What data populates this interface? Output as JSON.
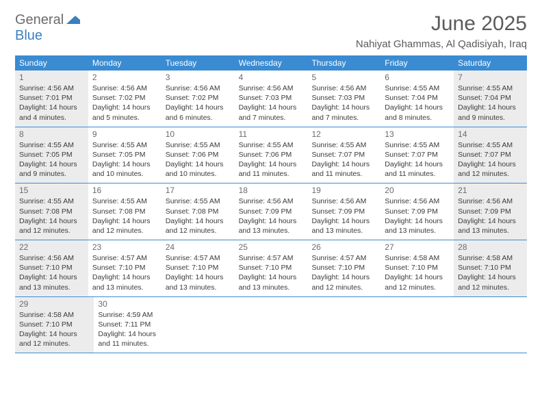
{
  "brand": {
    "part1": "General",
    "part2": "Blue"
  },
  "title": "June 2025",
  "location": "Nahiyat Ghammas, Al Qadisiyah, Iraq",
  "colors": {
    "header_bg": "#3a8bd1",
    "header_text": "#ffffff",
    "shade_bg": "#ececec",
    "text_muted": "#6b6b6b",
    "text_body": "#3a3a3a",
    "brand_gray": "#6b6b6b",
    "brand_blue": "#3a7fbf",
    "border": "#3a8bd1"
  },
  "weekdays": [
    "Sunday",
    "Monday",
    "Tuesday",
    "Wednesday",
    "Thursday",
    "Friday",
    "Saturday"
  ],
  "weeks": [
    [
      {
        "n": "1",
        "shaded": true,
        "sr": "Sunrise: 4:56 AM",
        "ss": "Sunset: 7:01 PM",
        "dl1": "Daylight: 14 hours",
        "dl2": "and 4 minutes."
      },
      {
        "n": "2",
        "shaded": false,
        "sr": "Sunrise: 4:56 AM",
        "ss": "Sunset: 7:02 PM",
        "dl1": "Daylight: 14 hours",
        "dl2": "and 5 minutes."
      },
      {
        "n": "3",
        "shaded": false,
        "sr": "Sunrise: 4:56 AM",
        "ss": "Sunset: 7:02 PM",
        "dl1": "Daylight: 14 hours",
        "dl2": "and 6 minutes."
      },
      {
        "n": "4",
        "shaded": false,
        "sr": "Sunrise: 4:56 AM",
        "ss": "Sunset: 7:03 PM",
        "dl1": "Daylight: 14 hours",
        "dl2": "and 7 minutes."
      },
      {
        "n": "5",
        "shaded": false,
        "sr": "Sunrise: 4:56 AM",
        "ss": "Sunset: 7:03 PM",
        "dl1": "Daylight: 14 hours",
        "dl2": "and 7 minutes."
      },
      {
        "n": "6",
        "shaded": false,
        "sr": "Sunrise: 4:55 AM",
        "ss": "Sunset: 7:04 PM",
        "dl1": "Daylight: 14 hours",
        "dl2": "and 8 minutes."
      },
      {
        "n": "7",
        "shaded": true,
        "sr": "Sunrise: 4:55 AM",
        "ss": "Sunset: 7:04 PM",
        "dl1": "Daylight: 14 hours",
        "dl2": "and 9 minutes."
      }
    ],
    [
      {
        "n": "8",
        "shaded": true,
        "sr": "Sunrise: 4:55 AM",
        "ss": "Sunset: 7:05 PM",
        "dl1": "Daylight: 14 hours",
        "dl2": "and 9 minutes."
      },
      {
        "n": "9",
        "shaded": false,
        "sr": "Sunrise: 4:55 AM",
        "ss": "Sunset: 7:05 PM",
        "dl1": "Daylight: 14 hours",
        "dl2": "and 10 minutes."
      },
      {
        "n": "10",
        "shaded": false,
        "sr": "Sunrise: 4:55 AM",
        "ss": "Sunset: 7:06 PM",
        "dl1": "Daylight: 14 hours",
        "dl2": "and 10 minutes."
      },
      {
        "n": "11",
        "shaded": false,
        "sr": "Sunrise: 4:55 AM",
        "ss": "Sunset: 7:06 PM",
        "dl1": "Daylight: 14 hours",
        "dl2": "and 11 minutes."
      },
      {
        "n": "12",
        "shaded": false,
        "sr": "Sunrise: 4:55 AM",
        "ss": "Sunset: 7:07 PM",
        "dl1": "Daylight: 14 hours",
        "dl2": "and 11 minutes."
      },
      {
        "n": "13",
        "shaded": false,
        "sr": "Sunrise: 4:55 AM",
        "ss": "Sunset: 7:07 PM",
        "dl1": "Daylight: 14 hours",
        "dl2": "and 11 minutes."
      },
      {
        "n": "14",
        "shaded": true,
        "sr": "Sunrise: 4:55 AM",
        "ss": "Sunset: 7:07 PM",
        "dl1": "Daylight: 14 hours",
        "dl2": "and 12 minutes."
      }
    ],
    [
      {
        "n": "15",
        "shaded": true,
        "sr": "Sunrise: 4:55 AM",
        "ss": "Sunset: 7:08 PM",
        "dl1": "Daylight: 14 hours",
        "dl2": "and 12 minutes."
      },
      {
        "n": "16",
        "shaded": false,
        "sr": "Sunrise: 4:55 AM",
        "ss": "Sunset: 7:08 PM",
        "dl1": "Daylight: 14 hours",
        "dl2": "and 12 minutes."
      },
      {
        "n": "17",
        "shaded": false,
        "sr": "Sunrise: 4:55 AM",
        "ss": "Sunset: 7:08 PM",
        "dl1": "Daylight: 14 hours",
        "dl2": "and 12 minutes."
      },
      {
        "n": "18",
        "shaded": false,
        "sr": "Sunrise: 4:56 AM",
        "ss": "Sunset: 7:09 PM",
        "dl1": "Daylight: 14 hours",
        "dl2": "and 13 minutes."
      },
      {
        "n": "19",
        "shaded": false,
        "sr": "Sunrise: 4:56 AM",
        "ss": "Sunset: 7:09 PM",
        "dl1": "Daylight: 14 hours",
        "dl2": "and 13 minutes."
      },
      {
        "n": "20",
        "shaded": false,
        "sr": "Sunrise: 4:56 AM",
        "ss": "Sunset: 7:09 PM",
        "dl1": "Daylight: 14 hours",
        "dl2": "and 13 minutes."
      },
      {
        "n": "21",
        "shaded": true,
        "sr": "Sunrise: 4:56 AM",
        "ss": "Sunset: 7:09 PM",
        "dl1": "Daylight: 14 hours",
        "dl2": "and 13 minutes."
      }
    ],
    [
      {
        "n": "22",
        "shaded": true,
        "sr": "Sunrise: 4:56 AM",
        "ss": "Sunset: 7:10 PM",
        "dl1": "Daylight: 14 hours",
        "dl2": "and 13 minutes."
      },
      {
        "n": "23",
        "shaded": false,
        "sr": "Sunrise: 4:57 AM",
        "ss": "Sunset: 7:10 PM",
        "dl1": "Daylight: 14 hours",
        "dl2": "and 13 minutes."
      },
      {
        "n": "24",
        "shaded": false,
        "sr": "Sunrise: 4:57 AM",
        "ss": "Sunset: 7:10 PM",
        "dl1": "Daylight: 14 hours",
        "dl2": "and 13 minutes."
      },
      {
        "n": "25",
        "shaded": false,
        "sr": "Sunrise: 4:57 AM",
        "ss": "Sunset: 7:10 PM",
        "dl1": "Daylight: 14 hours",
        "dl2": "and 13 minutes."
      },
      {
        "n": "26",
        "shaded": false,
        "sr": "Sunrise: 4:57 AM",
        "ss": "Sunset: 7:10 PM",
        "dl1": "Daylight: 14 hours",
        "dl2": "and 12 minutes."
      },
      {
        "n": "27",
        "shaded": false,
        "sr": "Sunrise: 4:58 AM",
        "ss": "Sunset: 7:10 PM",
        "dl1": "Daylight: 14 hours",
        "dl2": "and 12 minutes."
      },
      {
        "n": "28",
        "shaded": true,
        "sr": "Sunrise: 4:58 AM",
        "ss": "Sunset: 7:10 PM",
        "dl1": "Daylight: 14 hours",
        "dl2": "and 12 minutes."
      }
    ],
    [
      {
        "n": "29",
        "shaded": true,
        "sr": "Sunrise: 4:58 AM",
        "ss": "Sunset: 7:10 PM",
        "dl1": "Daylight: 14 hours",
        "dl2": "and 12 minutes."
      },
      {
        "n": "30",
        "shaded": false,
        "sr": "Sunrise: 4:59 AM",
        "ss": "Sunset: 7:11 PM",
        "dl1": "Daylight: 14 hours",
        "dl2": "and 11 minutes."
      },
      null,
      null,
      null,
      null,
      null
    ]
  ]
}
